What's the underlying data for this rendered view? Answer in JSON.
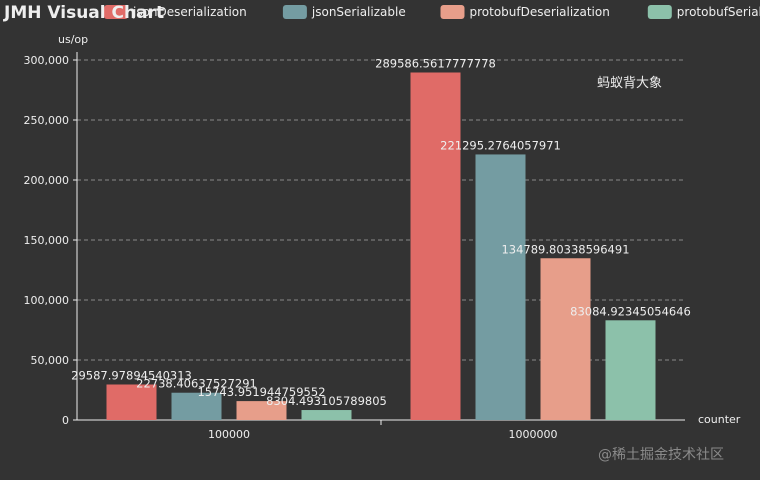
{
  "title": "JMH Visual Chart",
  "overlay_text": "蚂蚁背大象",
  "watermark": "@稀土掘金技术社区",
  "colors": {
    "background": "#333333",
    "text": "#eeeeee",
    "grid": "#8a8a8a",
    "axis": "#eeeeee"
  },
  "chart_data": {
    "type": "bar",
    "title": "JMH Visual Chart",
    "xlabel": "counter",
    "ylabel": "us/op",
    "categories": [
      "100000",
      "1000000"
    ],
    "ylim": [
      0,
      300000
    ],
    "yticks": [
      0,
      50000,
      100000,
      150000,
      200000,
      250000,
      300000
    ],
    "ytick_labels": [
      "0",
      "50,000",
      "100,000",
      "150,000",
      "200,000",
      "250,000",
      "300,000"
    ],
    "grid": "dashed horizontal",
    "legend_position": "top",
    "series": [
      {
        "name": "jsonDeserialization",
        "color": "#e06b67",
        "values": [
          29587.97894540313,
          289586.5617777778
        ],
        "labels": [
          "29587.97894540313",
          "289586.5617777778"
        ]
      },
      {
        "name": "jsonSerializable",
        "color": "#749ca2",
        "values": [
          22738.40637527291,
          221295.2764057971
        ],
        "labels": [
          "22738.40637527291",
          "221295.2764057971"
        ]
      },
      {
        "name": "protobufDeserialization",
        "color": "#e79e8a",
        "values": [
          15743.951944759552,
          134789.80338596491
        ],
        "labels": [
          "15743.951944759552",
          "134789.80338596491"
        ]
      },
      {
        "name": "protobufSerializable",
        "color": "#8cc1aa",
        "values": [
          8304.493105789805,
          83084.92345054646
        ],
        "labels": [
          "8304.493105789805",
          "83084.92345054646"
        ]
      }
    ]
  }
}
